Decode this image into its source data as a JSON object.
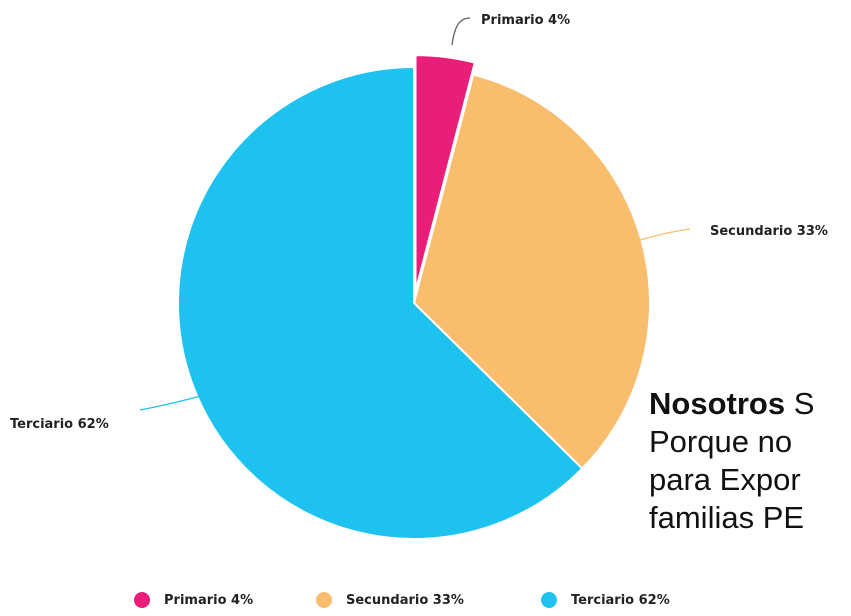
{
  "chart_data": {
    "type": "pie",
    "slices": [
      {
        "name": "Primario",
        "value": 4,
        "label": "Primario 4%",
        "color": "#E91E78"
      },
      {
        "name": "Secundario",
        "value": 33,
        "label": "Secundario 33%",
        "color": "#F8BE6E"
      },
      {
        "name": "Terciario",
        "value": 62,
        "label": "Terciario 62%",
        "color": "#1EC2EE"
      }
    ],
    "exploded": "Primario",
    "legend_position": "bottom",
    "legend": [
      "Primario 4%",
      "Secundario 33%",
      "Terciario 62%"
    ]
  },
  "overlay_text": {
    "line1_bold": "Nosotros",
    "line1_rest": " S",
    "line2": "Porque no ",
    "line3": "para Expor",
    "line4": "familias PE"
  }
}
